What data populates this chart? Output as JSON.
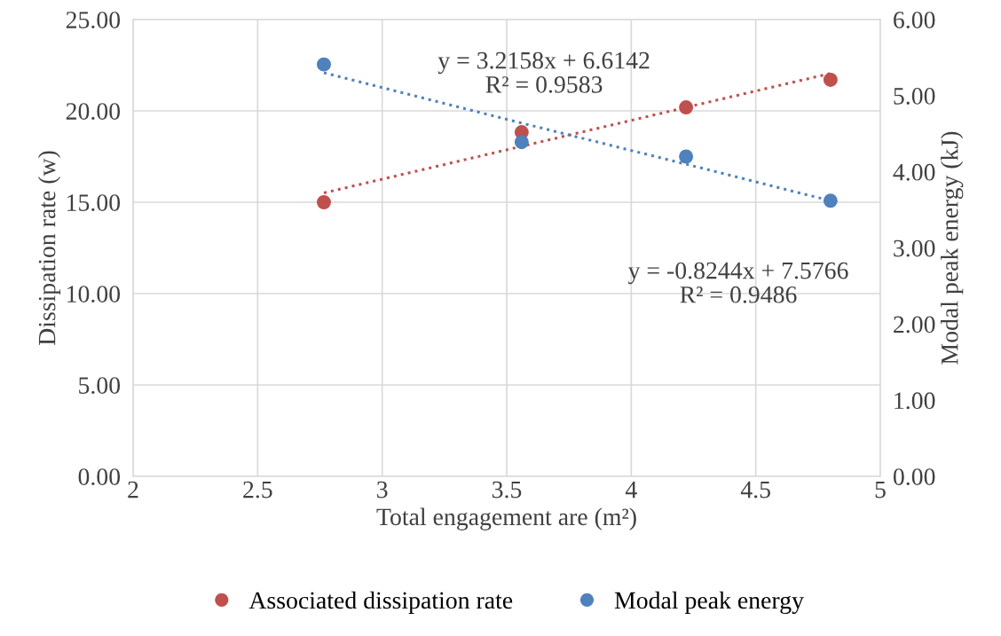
{
  "chart_data": {
    "type": "scatter",
    "xlabel": "Total engagement are (m²)",
    "ylabel": "Dissipation rate (w)",
    "y2label": "Modal peak energy (kJ)",
    "x": [
      2.766,
      3.56,
      4.22,
      4.8
    ],
    "series": [
      {
        "name": "Associated dissipation rate",
        "color": "#c0504d",
        "values": [
          15.0,
          18.83,
          20.19,
          21.7
        ]
      },
      {
        "name": "Modal peak energy",
        "color": "#4f81bd",
        "axis": "y2",
        "values": [
          5.41,
          4.39,
          4.2,
          3.62
        ]
      },
      {
        "type": "line",
        "color": "#c0504d",
        "line_style": "dotted",
        "marker": "none",
        "values": [
          15.51,
          18.06,
          20.19,
          22.05
        ]
      },
      {
        "type": "line",
        "color": "#4f81bd",
        "line_style": "dotted",
        "marker": "none",
        "axis": "y2",
        "values": [
          5.3,
          4.64,
          4.1,
          3.62
        ]
      }
    ],
    "annotations": [
      "y = 3.2158x + 6.6142\nR² = 0.9583",
      "y = -0.8244x + 7.5766\nR² = 0.9486"
    ],
    "xlim": [
      2,
      5
    ],
    "xticks": [
      2,
      2.5,
      3,
      3.5,
      4,
      4.5,
      5
    ],
    "ylim": [
      0,
      25
    ],
    "yticks": [
      {
        "value": 0,
        "label": "0.00"
      },
      {
        "value": 5,
        "label": "5.00"
      },
      {
        "value": 10,
        "label": "10.00"
      },
      {
        "value": 15,
        "label": "15.00"
      },
      {
        "value": 20,
        "label": "20.00"
      },
      {
        "value": 25,
        "label": "25.00"
      }
    ],
    "y2lim": [
      0,
      6
    ],
    "y2ticks": [
      {
        "value": 0,
        "label": "0.00"
      },
      {
        "value": 1,
        "label": "1.00"
      },
      {
        "value": 2,
        "label": "2.00"
      },
      {
        "value": 3,
        "label": "3.00"
      },
      {
        "value": 4,
        "label": "4.00"
      },
      {
        "value": 5,
        "label": "5.00"
      },
      {
        "value": 6,
        "label": "6.00"
      }
    ],
    "grid": true,
    "legend": "bottom",
    "marker": "circle"
  }
}
